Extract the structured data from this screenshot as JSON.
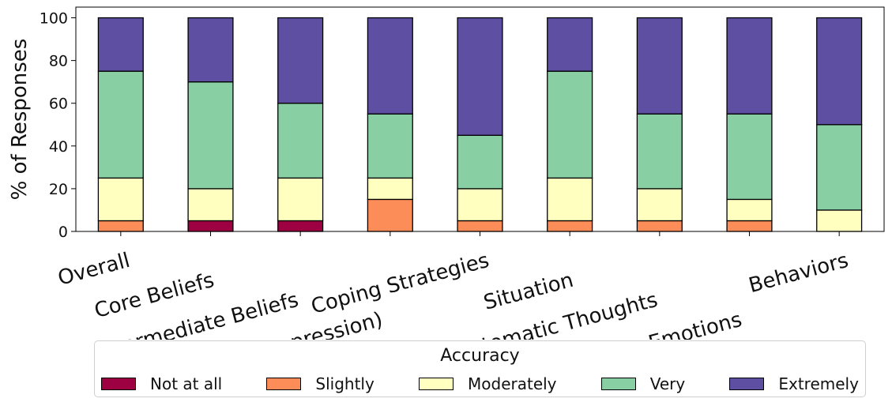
{
  "chart_data": {
    "type": "bar",
    "stacked": true,
    "categories": [
      "Overall",
      "Core Beliefs",
      "Intermediate Beliefs",
      "Intermediate Beliefs (Depression)",
      "Coping Strategies",
      "Situation",
      "Automatic Thoughts",
      "Emotions",
      "Behaviors"
    ],
    "series": [
      {
        "name": "Not at all",
        "color": "#9e0142",
        "values": [
          0,
          5,
          5,
          0,
          0,
          0,
          0,
          0,
          0
        ]
      },
      {
        "name": "Slightly",
        "color": "#fc8d59",
        "values": [
          5,
          0,
          0,
          15,
          5,
          5,
          5,
          5,
          0
        ]
      },
      {
        "name": "Moderately",
        "color": "#ffffbf",
        "values": [
          20,
          15,
          20,
          10,
          15,
          20,
          15,
          10,
          10
        ]
      },
      {
        "name": "Very",
        "color": "#88cfa4",
        "values": [
          50,
          50,
          35,
          30,
          25,
          50,
          35,
          40,
          40
        ]
      },
      {
        "name": "Extremely",
        "color": "#5e4fa2",
        "values": [
          25,
          30,
          40,
          45,
          55,
          25,
          45,
          45,
          50
        ]
      }
    ],
    "ylabel": "% of Responses",
    "ylim": [
      0,
      105
    ],
    "yticks": [
      0,
      20,
      40,
      60,
      80,
      100
    ],
    "legend": {
      "title": "Accuracy",
      "placement": "bottom"
    },
    "grid": false
  }
}
